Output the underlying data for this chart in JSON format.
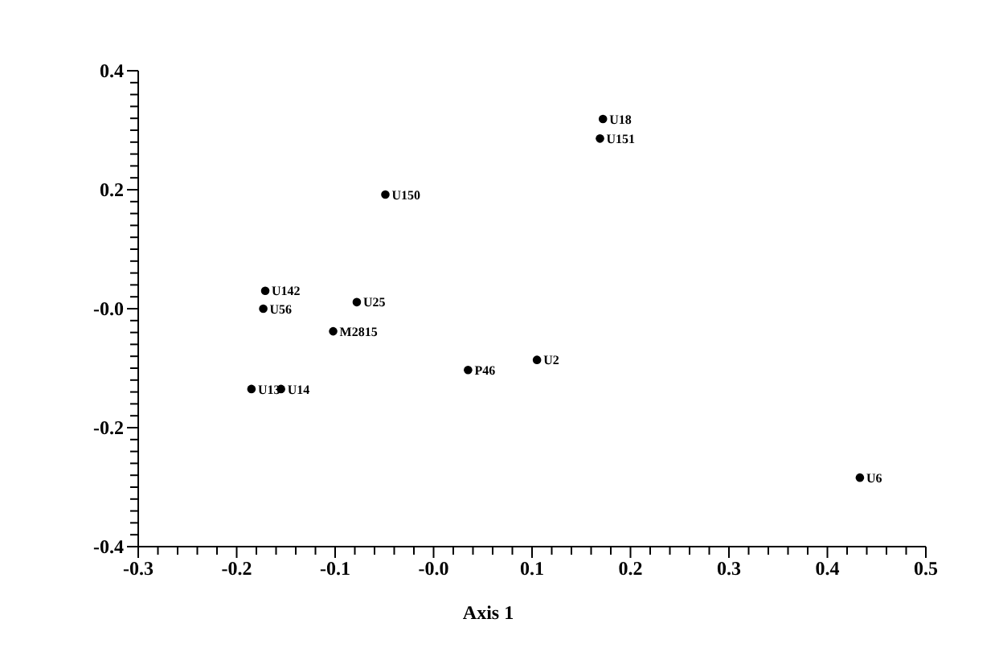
{
  "chart_data": {
    "type": "scatter",
    "xlabel": "Axis 1",
    "marker": "circle",
    "grid": false,
    "xlim": [
      -0.3,
      0.5
    ],
    "ylim": [
      -0.4,
      0.4
    ],
    "xticks": [
      {
        "value": -0.3,
        "label": "-0.3"
      },
      {
        "value": -0.28,
        "label": null
      },
      {
        "value": -0.26,
        "label": null
      },
      {
        "value": -0.24,
        "label": null
      },
      {
        "value": -0.22,
        "label": null
      },
      {
        "value": -0.2,
        "label": "-0.2"
      },
      {
        "value": -0.18,
        "label": null
      },
      {
        "value": -0.16,
        "label": null
      },
      {
        "value": -0.14,
        "label": null
      },
      {
        "value": -0.12,
        "label": null
      },
      {
        "value": -0.1,
        "label": "-0.1"
      },
      {
        "value": -0.08,
        "label": null
      },
      {
        "value": -0.06,
        "label": null
      },
      {
        "value": -0.04,
        "label": null
      },
      {
        "value": -0.02,
        "label": null
      },
      {
        "value": 0,
        "label": "-0.0"
      },
      {
        "value": 0.02,
        "label": null
      },
      {
        "value": 0.04,
        "label": null
      },
      {
        "value": 0.06,
        "label": null
      },
      {
        "value": 0.08,
        "label": null
      },
      0.1,
      {
        "value": 0.12,
        "label": null
      },
      {
        "value": 0.14,
        "label": null
      },
      {
        "value": 0.16,
        "label": null
      },
      {
        "value": 0.18,
        "label": null
      },
      0.2,
      {
        "value": 0.22,
        "label": null
      },
      {
        "value": 0.24,
        "label": null
      },
      {
        "value": 0.26,
        "label": null
      },
      {
        "value": 0.28,
        "label": null
      },
      0.3,
      {
        "value": 0.32,
        "label": null
      },
      {
        "value": 0.34,
        "label": null
      },
      {
        "value": 0.36,
        "label": null
      },
      {
        "value": 0.38,
        "label": null
      },
      0.4,
      {
        "value": 0.42,
        "label": null
      },
      {
        "value": 0.44,
        "label": null
      },
      {
        "value": 0.46,
        "label": null
      },
      {
        "value": 0.48,
        "label": null
      },
      0.5
    ],
    "yticks": [
      {
        "value": -0.4,
        "label": "-0.4"
      },
      {
        "value": -0.38,
        "label": null
      },
      {
        "value": -0.36,
        "label": null
      },
      {
        "value": -0.34,
        "label": null
      },
      {
        "value": -0.32,
        "label": null
      },
      {
        "value": -0.3,
        "label": null
      },
      {
        "value": -0.28,
        "label": null
      },
      {
        "value": -0.26,
        "label": null
      },
      {
        "value": -0.24,
        "label": null
      },
      {
        "value": -0.22,
        "label": null
      },
      {
        "value": -0.2,
        "label": "-0.2"
      },
      {
        "value": -0.18,
        "label": null
      },
      {
        "value": -0.16,
        "label": null
      },
      {
        "value": -0.14,
        "label": null
      },
      {
        "value": -0.12,
        "label": null
      },
      {
        "value": -0.1,
        "label": null
      },
      {
        "value": -0.08,
        "label": null
      },
      {
        "value": -0.06,
        "label": null
      },
      {
        "value": -0.04,
        "label": null
      },
      {
        "value": -0.02,
        "label": null
      },
      {
        "value": 0,
        "label": "-0.0"
      },
      {
        "value": 0.02,
        "label": null
      },
      {
        "value": 0.04,
        "label": null
      },
      {
        "value": 0.06,
        "label": null
      },
      {
        "value": 0.08,
        "label": null
      },
      {
        "value": 0.1,
        "label": null
      },
      {
        "value": 0.12,
        "label": null
      },
      {
        "value": 0.14,
        "label": null
      },
      {
        "value": 0.16,
        "label": null
      },
      {
        "value": 0.18,
        "label": null
      },
      0.2,
      {
        "value": 0.22,
        "label": null
      },
      {
        "value": 0.24,
        "label": null
      },
      {
        "value": 0.26,
        "label": null
      },
      {
        "value": 0.28,
        "label": null
      },
      {
        "value": 0.3,
        "label": null
      },
      {
        "value": 0.32,
        "label": null
      },
      {
        "value": 0.34,
        "label": null
      },
      {
        "value": 0.36,
        "label": null
      },
      {
        "value": 0.38,
        "label": null
      },
      0.4
    ],
    "series": [
      {
        "color": "#000000",
        "x": [
          0.172,
          0.169,
          -0.049,
          -0.171,
          -0.173,
          -0.078,
          -0.102,
          0.035,
          0.105,
          0.433,
          -0.185,
          -0.155
        ],
        "values": [
          0.319,
          0.286,
          0.192,
          0.03,
          0.0,
          0.011,
          -0.038,
          -0.103,
          -0.086,
          -0.284,
          -0.135,
          -0.135
        ],
        "value_labels": [
          "U18",
          "U151",
          "U150",
          "U142",
          "U56",
          "U25",
          "M2815",
          "P46",
          "U2",
          "U6",
          "U13",
          "U14"
        ]
      }
    ]
  }
}
